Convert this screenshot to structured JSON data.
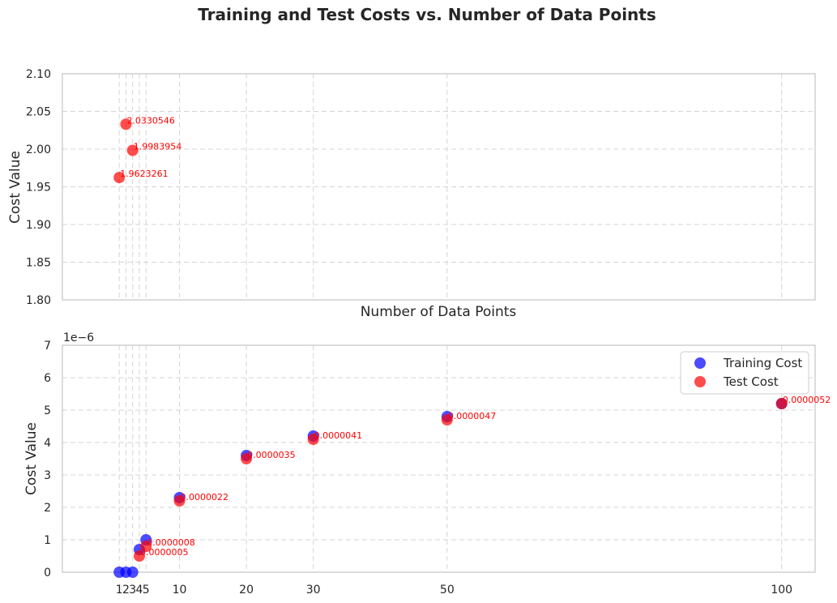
{
  "title": "Training and Test Costs vs. Number of Data Points",
  "colors": {
    "training": "#0000ff",
    "test": "#ff0000",
    "label": "#ff0000"
  },
  "chart_data": [
    {
      "type": "scatter",
      "xlabel": "Number of Data Points",
      "ylabel": "Cost Value",
      "xlim": [
        -7.5,
        105
      ],
      "ylim": [
        1.8,
        2.1
      ],
      "grid": true,
      "x_ticks": [
        1,
        2,
        3,
        4,
        5,
        10,
        20,
        30,
        50,
        100
      ],
      "y_ticks": [
        "1.80",
        "1.85",
        "1.90",
        "1.95",
        "2.00",
        "2.05",
        "2.10"
      ],
      "series": [
        {
          "name": "Test Cost",
          "color": "#ff0000",
          "x": [
            1,
            2,
            3
          ],
          "y": [
            1.9623261,
            2.0330546,
            1.9983954
          ],
          "labels": [
            "1.9623261",
            "2.0330546",
            "1.9983954"
          ]
        }
      ]
    },
    {
      "type": "scatter",
      "xlabel": "",
      "ylabel": "Cost Value",
      "y_scale_label": "1e−6",
      "xlim": [
        -7.5,
        105
      ],
      "ylim": [
        0,
        7e-06
      ],
      "grid": true,
      "x_ticks": [
        1,
        2,
        3,
        4,
        5,
        10,
        20,
        30,
        50,
        100
      ],
      "x_tick_labels": [
        "1",
        "2",
        "3",
        "4",
        "5",
        "10",
        "20",
        "30",
        "50",
        "100"
      ],
      "y_ticks": [
        "0",
        "1",
        "2",
        "3",
        "4",
        "5",
        "6",
        "7"
      ],
      "legend_position": "top-right",
      "series": [
        {
          "name": "Training Cost",
          "color": "#0000ff",
          "x": [
            1,
            2,
            3,
            4,
            5,
            10,
            20,
            30,
            50,
            100
          ],
          "y": [
            0,
            0,
            0,
            7e-07,
            1e-06,
            2.3e-06,
            3.6e-06,
            4.2e-06,
            4.8e-06,
            5.2e-06
          ]
        },
        {
          "name": "Test Cost",
          "color": "#ff0000",
          "x": [
            4,
            5,
            10,
            20,
            30,
            50,
            100
          ],
          "y": [
            5e-07,
            8e-07,
            2.2e-06,
            3.5e-06,
            4.1e-06,
            4.7e-06,
            5.2e-06
          ],
          "labels": [
            "0.0000005",
            "0.0000008",
            "0.0000022",
            "0.0000035",
            "0.0000041",
            "0.0000047",
            "0.0000052"
          ]
        }
      ]
    }
  ]
}
